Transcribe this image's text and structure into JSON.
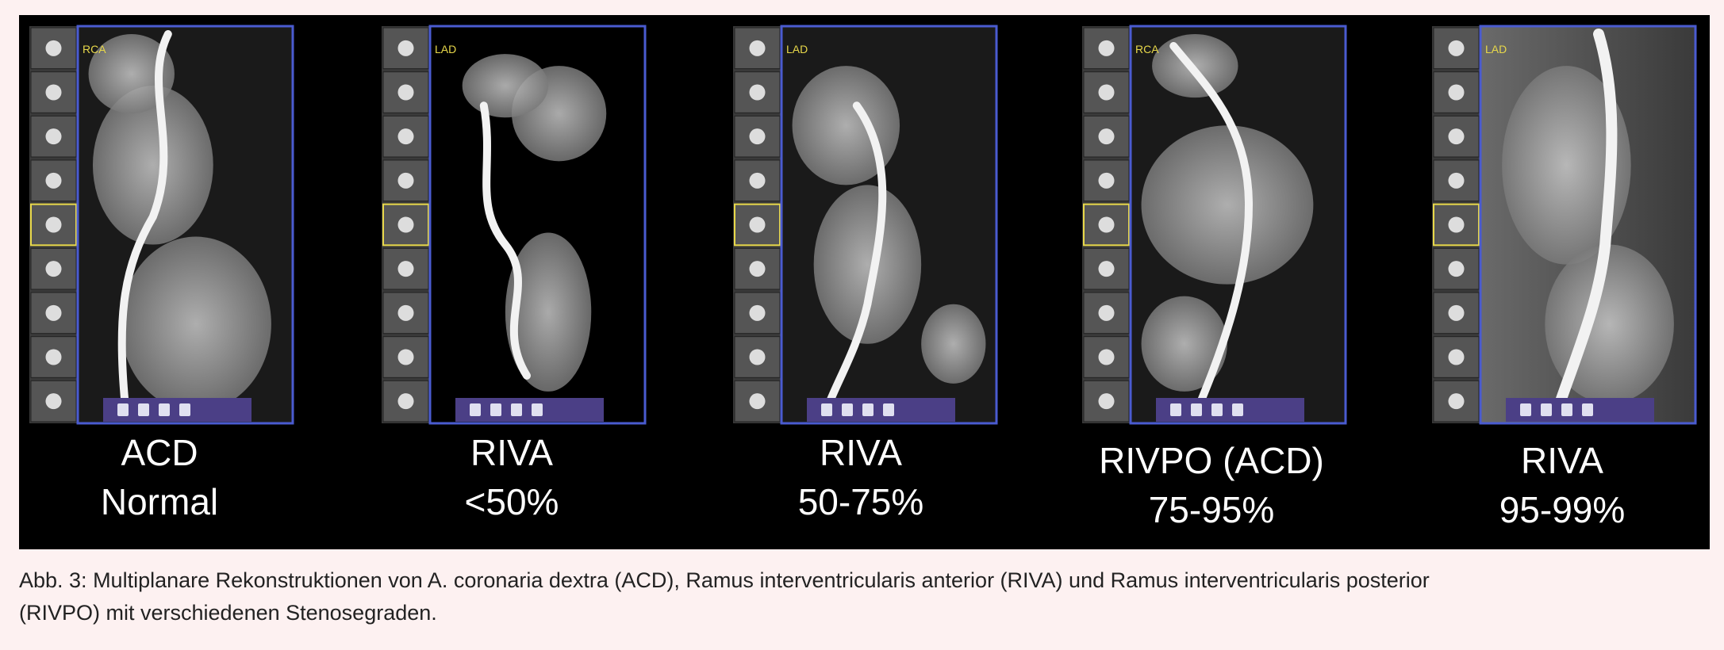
{
  "figure": {
    "panels": [
      {
        "vessel_tag": "RCA",
        "title": "ACD",
        "grade": "Normal"
      },
      {
        "vessel_tag": "LAD",
        "title": "RIVA",
        "grade": "<50%"
      },
      {
        "vessel_tag": "LAD",
        "title": "RIVA",
        "grade": "50-75%"
      },
      {
        "vessel_tag": "RCA",
        "title": "RIVPO (ACD)",
        "grade": "75-95%"
      },
      {
        "vessel_tag": "LAD",
        "title": "RIVA",
        "grade": "95-99%"
      }
    ]
  },
  "caption_lines": [
    "Abb. 3: Multiplanare Rekonstruktionen von A. coronaria dextra (ACD), Ramus interventricularis anterior (RIVA) und Ramus interventricularis posterior",
    "(RIVPO) mit verschiedenen Stenosegraden."
  ]
}
